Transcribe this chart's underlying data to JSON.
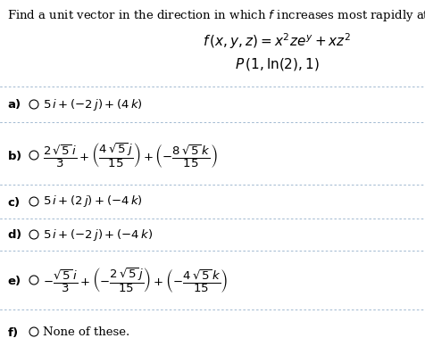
{
  "bg_color": "#ffffff",
  "text_color": "#000000",
  "header_text": "Find a unit vector in the direction in which $f$ increases most rapidly at $P$.",
  "function_line": "$f\\,(x, y, z) = x^2ze^{y} + xz^2$",
  "point_line": "$P\\,(1, \\ln(2), 1)$",
  "divider_color": "#a0b8d0",
  "font_size_header": 9.5,
  "font_size_options": 9.5,
  "font_size_eq": 11.0
}
